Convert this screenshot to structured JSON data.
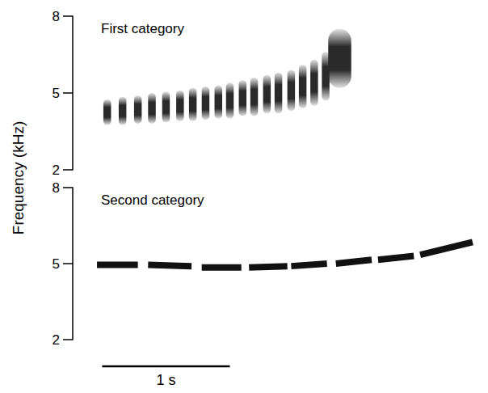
{
  "chart_data": [
    {
      "type": "pulse",
      "title": "First category",
      "ylabel": "Frequency (kHz)",
      "xlim": [
        0,
        3.2
      ],
      "ylim": [
        2,
        8
      ],
      "yticks": [
        2,
        5,
        8
      ],
      "tick_labels": "y",
      "color": "#2a2a2a",
      "pulses": {
        "x": [
          0.27,
          0.39,
          0.51,
          0.62,
          0.73,
          0.84,
          0.94,
          1.04,
          1.14,
          1.23,
          1.33,
          1.42,
          1.52,
          1.61,
          1.71,
          1.8,
          1.89,
          1.98,
          2.09
        ],
        "duration": [
          0.06,
          0.06,
          0.06,
          0.06,
          0.06,
          0.06,
          0.06,
          0.06,
          0.06,
          0.06,
          0.06,
          0.06,
          0.06,
          0.06,
          0.06,
          0.06,
          0.06,
          0.06,
          0.18
        ],
        "low": [
          3.75,
          3.75,
          3.8,
          3.8,
          3.85,
          3.9,
          3.9,
          3.95,
          4.0,
          4.0,
          4.1,
          4.1,
          4.2,
          4.2,
          4.3,
          4.4,
          4.5,
          4.7,
          5.2
        ],
        "high": [
          4.75,
          4.85,
          4.9,
          5.0,
          5.05,
          5.1,
          5.2,
          5.25,
          5.3,
          5.4,
          5.5,
          5.6,
          5.7,
          5.8,
          5.9,
          6.1,
          6.3,
          6.6,
          7.5
        ]
      }
    },
    {
      "type": "segment",
      "title": "Second category",
      "xlim": [
        0,
        3.2
      ],
      "ylim": [
        2,
        8
      ],
      "yticks": [
        2,
        5,
        8
      ],
      "tick_labels": "y",
      "color": "#111111",
      "syllables": {
        "start": [
          0.19,
          0.59,
          1.01,
          1.38,
          1.71,
          2.06,
          2.39,
          2.72
        ],
        "end": [
          0.51,
          0.93,
          1.32,
          1.68,
          1.99,
          2.34,
          2.67,
          3.13
        ],
        "start_freq": [
          4.95,
          4.95,
          4.85,
          4.85,
          4.9,
          5.0,
          5.15,
          5.35
        ],
        "end_freq": [
          4.95,
          4.9,
          4.85,
          4.9,
          5.0,
          5.15,
          5.3,
          5.85
        ]
      },
      "scale_bar": {
        "start": 0.23,
        "length": 1,
        "label": "1 s"
      }
    }
  ]
}
